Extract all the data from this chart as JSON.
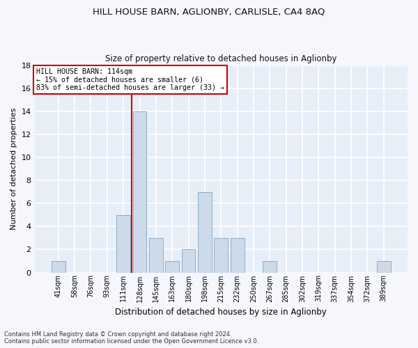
{
  "title": "HILL HOUSE BARN, AGLIONBY, CARLISLE, CA4 8AQ",
  "subtitle": "Size of property relative to detached houses in Aglionby",
  "xlabel": "Distribution of detached houses by size in Aglionby",
  "ylabel": "Number of detached properties",
  "categories": [
    "41sqm",
    "58sqm",
    "76sqm",
    "93sqm",
    "111sqm",
    "128sqm",
    "145sqm",
    "163sqm",
    "180sqm",
    "198sqm",
    "215sqm",
    "232sqm",
    "250sqm",
    "267sqm",
    "285sqm",
    "302sqm",
    "319sqm",
    "337sqm",
    "354sqm",
    "372sqm",
    "389sqm"
  ],
  "values": [
    1,
    0,
    0,
    0,
    5,
    14,
    3,
    1,
    2,
    7,
    3,
    3,
    0,
    1,
    0,
    0,
    0,
    0,
    0,
    0,
    1
  ],
  "bar_color": "#cddaea",
  "bar_edge_color": "#8baec8",
  "annotation_text_line1": "HILL HOUSE BARN: 114sqm",
  "annotation_text_line2": "← 15% of detached houses are smaller (6)",
  "annotation_text_line3": "83% of semi-detached houses are larger (33) →",
  "annotation_box_facecolor": "#ffffff",
  "annotation_box_edgecolor": "#cc0000",
  "vline_color": "#cc0000",
  "vline_x": 4.5,
  "ylim": [
    0,
    18
  ],
  "yticks": [
    0,
    2,
    4,
    6,
    8,
    10,
    12,
    14,
    16,
    18
  ],
  "plot_bg_color": "#e8eef8",
  "fig_bg_color": "#f5f7fc",
  "grid_color": "#ffffff",
  "title_color": "#111111",
  "footer_line1": "Contains HM Land Registry data © Crown copyright and database right 2024.",
  "footer_line2": "Contains public sector information licensed under the Open Government Licence v3.0."
}
